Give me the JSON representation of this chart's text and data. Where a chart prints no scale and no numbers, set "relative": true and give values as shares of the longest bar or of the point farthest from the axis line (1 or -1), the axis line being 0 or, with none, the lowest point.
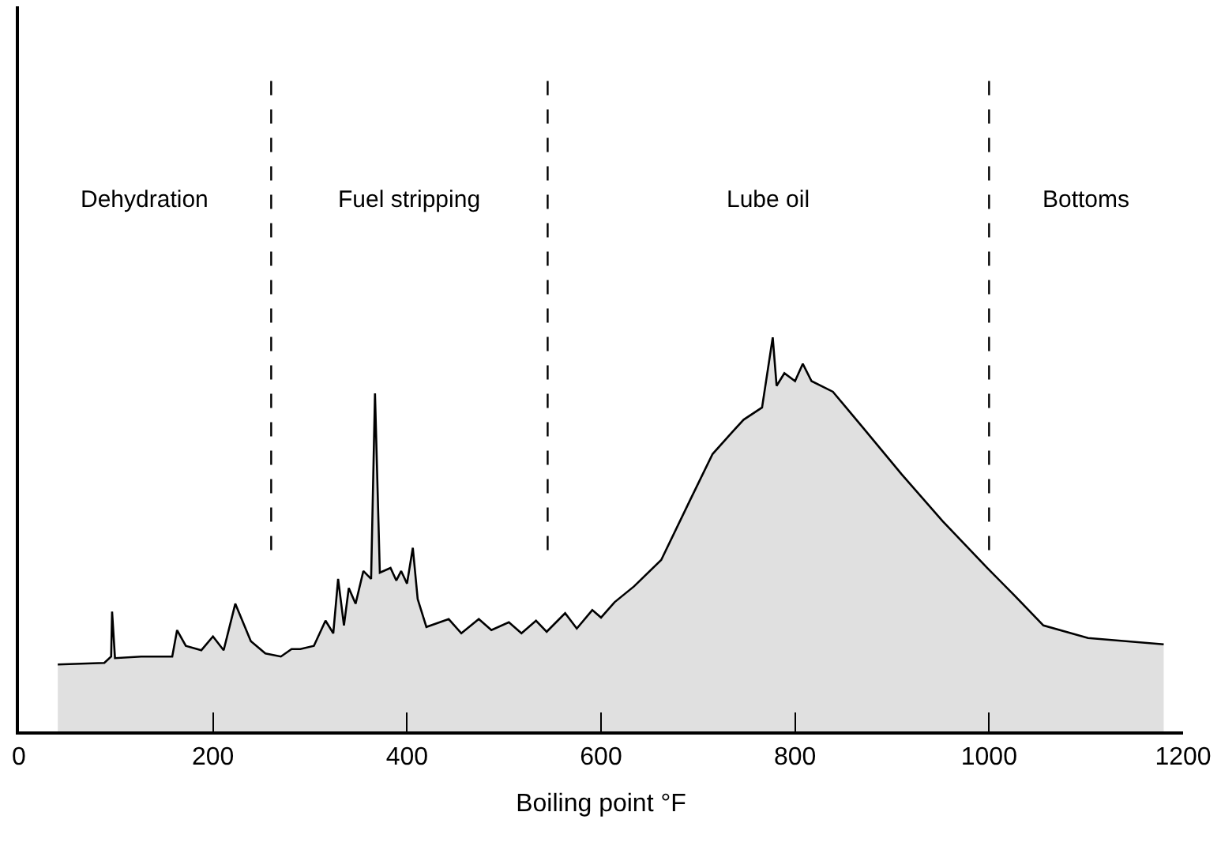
{
  "chart_data": {
    "type": "area",
    "relative": true,
    "xlabel": "Boiling point °F",
    "xlim": [
      0,
      1200
    ],
    "xticks": [
      0,
      200,
      400,
      600,
      800,
      1000,
      1200
    ],
    "series": [
      {
        "color": "#e0e0e0",
        "x": [
          40,
          88,
          95,
          96,
          99,
          126,
          158,
          163,
          172,
          188,
          200,
          211,
          223,
          239,
          254,
          270,
          281,
          290,
          304,
          316,
          324,
          329,
          335,
          340,
          347,
          355,
          363,
          367,
          372,
          383,
          389,
          394,
          400,
          406,
          411,
          420,
          443,
          456,
          474,
          487,
          505,
          518,
          533,
          544,
          563,
          575,
          591,
          600,
          614,
          634,
          662,
          693,
          715,
          735,
          747,
          766,
          777,
          781,
          789,
          800,
          808,
          817,
          839,
          870,
          910,
          952,
          998,
          1025,
          1056,
          1102,
          1180
        ],
        "values": [
          0.17,
          0.174,
          0.19,
          0.304,
          0.186,
          0.19,
          0.19,
          0.257,
          0.217,
          0.206,
          0.241,
          0.206,
          0.324,
          0.229,
          0.198,
          0.19,
          0.209,
          0.209,
          0.217,
          0.281,
          0.249,
          0.387,
          0.269,
          0.364,
          0.324,
          0.407,
          0.387,
          0.858,
          0.403,
          0.415,
          0.383,
          0.407,
          0.375,
          0.466,
          0.336,
          0.265,
          0.285,
          0.249,
          0.285,
          0.257,
          0.277,
          0.249,
          0.281,
          0.253,
          0.3,
          0.261,
          0.308,
          0.289,
          0.328,
          0.368,
          0.435,
          0.593,
          0.704,
          0.759,
          0.791,
          0.822,
          1.0,
          0.877,
          0.909,
          0.889,
          0.933,
          0.889,
          0.862,
          0.771,
          0.652,
          0.534,
          0.415,
          0.348,
          0.269,
          0.237,
          0.221
        ]
      }
    ],
    "ref_lines": [
      {
        "axis": "x",
        "value": 260,
        "color": "#000000",
        "line_style": "dashed"
      },
      {
        "axis": "x",
        "value": 545,
        "color": "#000000",
        "line_style": "dashed"
      },
      {
        "axis": "x",
        "value": 1000,
        "color": "#000000",
        "line_style": "dashed"
      }
    ],
    "annotations": [
      "Dehydration",
      "Fuel stripping",
      "Lube oil",
      "Bottoms"
    ]
  }
}
